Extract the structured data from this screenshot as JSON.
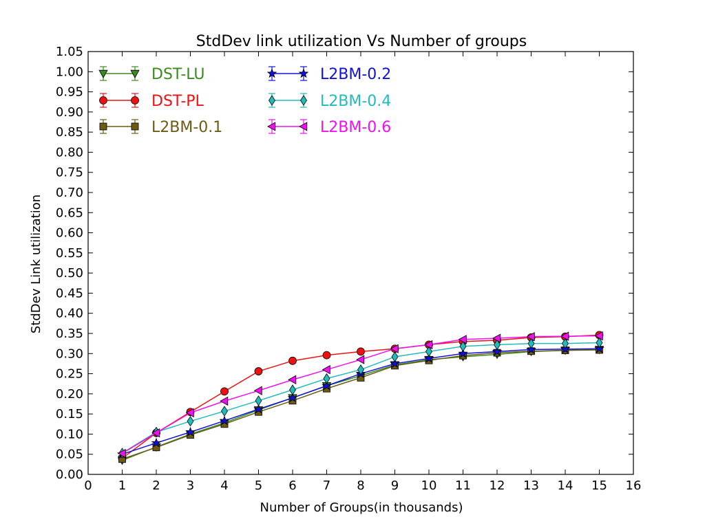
{
  "chart_data": {
    "type": "line",
    "title": "StdDev link utilization Vs Number of groups",
    "xlabel": "Number of Groups(in thousands)",
    "ylabel": "StdDev Link utilization",
    "xlim": [
      0,
      16
    ],
    "ylim": [
      0,
      1.05
    ],
    "xticks": [
      "0",
      "1",
      "2",
      "3",
      "4",
      "5",
      "6",
      "7",
      "8",
      "9",
      "10",
      "11",
      "12",
      "13",
      "14",
      "15",
      "16"
    ],
    "yticks": [
      "0.00",
      "0.05",
      "0.10",
      "0.15",
      "0.20",
      "0.25",
      "0.30",
      "0.35",
      "0.40",
      "0.45",
      "0.50",
      "0.55",
      "0.60",
      "0.65",
      "0.70",
      "0.75",
      "0.80",
      "0.85",
      "0.90",
      "0.95",
      "1.00",
      "1.05"
    ],
    "grid": false,
    "legend_position": "top-left",
    "x": [
      1,
      2,
      3,
      4,
      5,
      6,
      7,
      8,
      9,
      10,
      11,
      12,
      13,
      14,
      15
    ],
    "series": [
      {
        "name": "DST-LU",
        "color": "#3a8a1e",
        "marker": "triangle-down",
        "values": [
          0.035,
          0.068,
          0.1,
          0.128,
          0.16,
          0.19,
          0.22,
          0.245,
          0.272,
          0.285,
          0.292,
          0.298,
          0.305,
          0.308,
          0.31
        ]
      },
      {
        "name": "DST-PL",
        "color": "#ee1111",
        "marker": "circle",
        "values": [
          0.04,
          0.103,
          0.155,
          0.206,
          0.256,
          0.282,
          0.296,
          0.305,
          0.312,
          0.322,
          0.33,
          0.333,
          0.34,
          0.342,
          0.346
        ]
      },
      {
        "name": "L2BM-0.1",
        "color": "#6b5b13",
        "marker": "square",
        "values": [
          0.038,
          0.067,
          0.098,
          0.125,
          0.155,
          0.183,
          0.213,
          0.24,
          0.27,
          0.283,
          0.295,
          0.302,
          0.306,
          0.308,
          0.309
        ]
      },
      {
        "name": "L2BM-0.2",
        "color": "#1111dd",
        "marker": "star",
        "values": [
          0.05,
          0.078,
          0.105,
          0.133,
          0.162,
          0.19,
          0.22,
          0.25,
          0.275,
          0.288,
          0.3,
          0.305,
          0.31,
          0.311,
          0.312
        ]
      },
      {
        "name": "L2BM-0.4",
        "color": "#22bbbb",
        "marker": "diamond",
        "values": [
          0.053,
          0.105,
          0.132,
          0.157,
          0.183,
          0.21,
          0.238,
          0.26,
          0.292,
          0.305,
          0.318,
          0.322,
          0.325,
          0.325,
          0.327
        ]
      },
      {
        "name": "L2BM-0.6",
        "color": "#ee11ee",
        "marker": "triangle-left",
        "values": [
          0.052,
          0.103,
          0.153,
          0.182,
          0.208,
          0.235,
          0.26,
          0.285,
          0.312,
          0.322,
          0.335,
          0.338,
          0.342,
          0.343,
          0.344
        ]
      }
    ]
  }
}
